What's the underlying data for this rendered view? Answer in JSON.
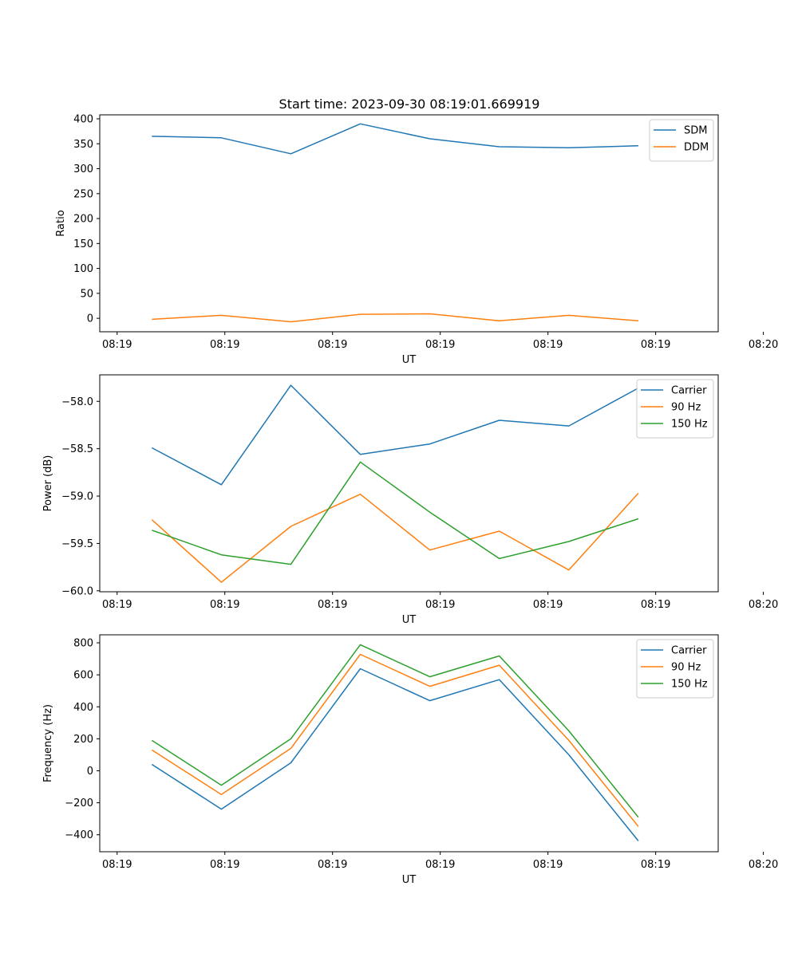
{
  "figure": {
    "title": "Start time: 2023-09-30 08:19:01.669919"
  },
  "chart_data": [
    {
      "type": "line",
      "title": "Start time: 2023-09-30 08:19:01.669919",
      "xlabel": "UT",
      "ylabel": "Ratio",
      "x": [
        1,
        2,
        3,
        4,
        5,
        6,
        7,
        8
      ],
      "xlim": [
        0.25,
        9.15
      ],
      "x_ticks": [
        0.5,
        2.05,
        3.6,
        5.15,
        6.7,
        8.25,
        9.8
      ],
      "x_tick_labels": [
        "08:19",
        "08:19",
        "08:19",
        "08:19",
        "08:19",
        "08:19",
        "08:20"
      ],
      "ylim": [
        -27,
        408
      ],
      "y_ticks": [
        0,
        50,
        100,
        150,
        200,
        250,
        300,
        350,
        400
      ],
      "y_tick_labels": [
        "0",
        "50",
        "100",
        "150",
        "200",
        "250",
        "300",
        "350",
        "400"
      ],
      "legend_position": "top-right",
      "series": [
        {
          "name": "SDM",
          "color": "#1f77b4",
          "values": [
            365,
            362,
            330,
            390,
            360,
            344,
            342,
            346
          ]
        },
        {
          "name": "DDM",
          "color": "#ff7f0e",
          "values": [
            -2,
            6,
            -7,
            8,
            9,
            -5,
            6,
            -5
          ]
        }
      ]
    },
    {
      "type": "line",
      "xlabel": "UT",
      "ylabel": "Power (dB)",
      "x": [
        1,
        2,
        3,
        4,
        5,
        6,
        7,
        8
      ],
      "xlim": [
        0.25,
        9.15
      ],
      "x_ticks": [
        0.5,
        2.05,
        3.6,
        5.15,
        6.7,
        8.25,
        9.8
      ],
      "x_tick_labels": [
        "08:19",
        "08:19",
        "08:19",
        "08:19",
        "08:19",
        "08:19",
        "08:20"
      ],
      "ylim": [
        -60.01,
        -57.72
      ],
      "y_ticks": [
        -60.0,
        -59.5,
        -59.0,
        -58.5,
        -58.0
      ],
      "y_tick_labels": [
        "−60.0",
        "−59.5",
        "−59.0",
        "−58.5",
        "−58.0"
      ],
      "legend_position": "top-right",
      "series": [
        {
          "name": "Carrier",
          "color": "#1f77b4",
          "values": [
            -58.49,
            -58.88,
            -57.83,
            -58.56,
            -58.45,
            -58.2,
            -58.26,
            -57.86
          ]
        },
        {
          "name": "90 Hz",
          "color": "#ff7f0e",
          "values": [
            -59.25,
            -59.91,
            -59.32,
            -58.98,
            -59.57,
            -59.37,
            -59.78,
            -58.97
          ]
        },
        {
          "name": "150 Hz",
          "color": "#2ca02c",
          "values": [
            -59.36,
            -59.62,
            -59.72,
            -58.64,
            -59.17,
            -59.66,
            -59.48,
            -59.24
          ]
        }
      ]
    },
    {
      "type": "line",
      "xlabel": "UT",
      "ylabel": "Frequency (Hz)",
      "x": [
        1,
        2,
        3,
        4,
        5,
        6,
        7,
        8
      ],
      "xlim": [
        0.25,
        9.15
      ],
      "x_ticks": [
        0.5,
        2.05,
        3.6,
        5.15,
        6.7,
        8.25,
        9.8
      ],
      "x_tick_labels": [
        "08:19",
        "08:19",
        "08:19",
        "08:19",
        "08:19",
        "08:19",
        "08:20"
      ],
      "ylim": [
        -506,
        850
      ],
      "y_ticks": [
        -400,
        -200,
        0,
        200,
        400,
        600,
        800
      ],
      "y_tick_labels": [
        "−400",
        "−200",
        "0",
        "200",
        "400",
        "600",
        "800"
      ],
      "legend_position": "top-right",
      "series": [
        {
          "name": "Carrier",
          "color": "#1f77b4",
          "values": [
            40,
            -240,
            50,
            638,
            438,
            570,
            100,
            -438
          ]
        },
        {
          "name": "90 Hz",
          "color": "#ff7f0e",
          "values": [
            130,
            -148,
            140,
            728,
            528,
            660,
            190,
            -348
          ]
        },
        {
          "name": "150 Hz",
          "color": "#2ca02c",
          "values": [
            190,
            -90,
            200,
            788,
            588,
            718,
            250,
            -290
          ]
        }
      ]
    }
  ]
}
